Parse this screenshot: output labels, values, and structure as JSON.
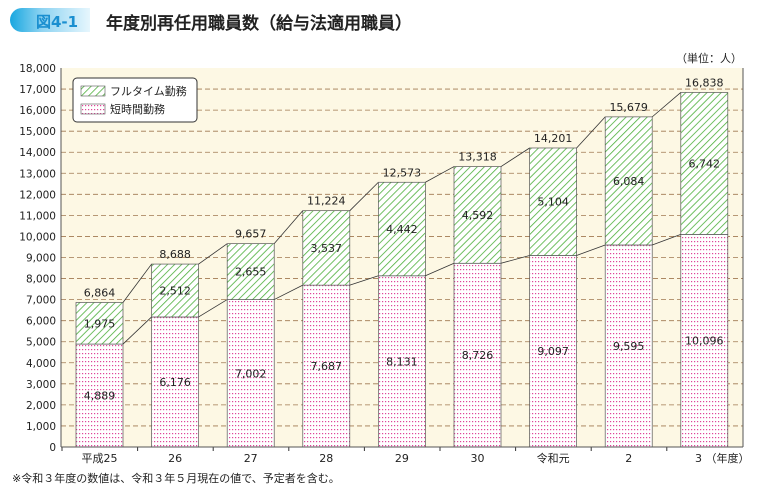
{
  "header": {
    "badge": "図4-1",
    "title": "年度別再任用職員数（給与法適用職員）"
  },
  "unit": "（単位：人）",
  "note": "※令和３年度の数値は、令和３年５月現在の値で、予定者を含む。",
  "chart_data": {
    "type": "bar",
    "stacked": true,
    "categories": [
      "平成25",
      "26",
      "27",
      "28",
      "29",
      "30",
      "令和元",
      "2",
      "3"
    ],
    "xlabel_suffix": "（年度）",
    "series": [
      {
        "name": "短時間勤務",
        "values": [
          4889,
          6176,
          7002,
          7687,
          8131,
          8726,
          9097,
          9595,
          10096
        ],
        "color": "#e0449a",
        "pattern": "dots"
      },
      {
        "name": "フルタイム勤務",
        "values": [
          1975,
          2512,
          2655,
          3537,
          4442,
          4592,
          5104,
          6084,
          6742
        ],
        "color": "#4caf3a",
        "pattern": "hatch"
      }
    ],
    "totals": [
      6864,
      8688,
      9657,
      11224,
      12573,
      13318,
      14201,
      15679,
      16838
    ],
    "ylim": [
      0,
      18000
    ],
    "ytick_step": 1000,
    "grid": true,
    "legend": "top-left",
    "background": "#fdf8e4"
  }
}
